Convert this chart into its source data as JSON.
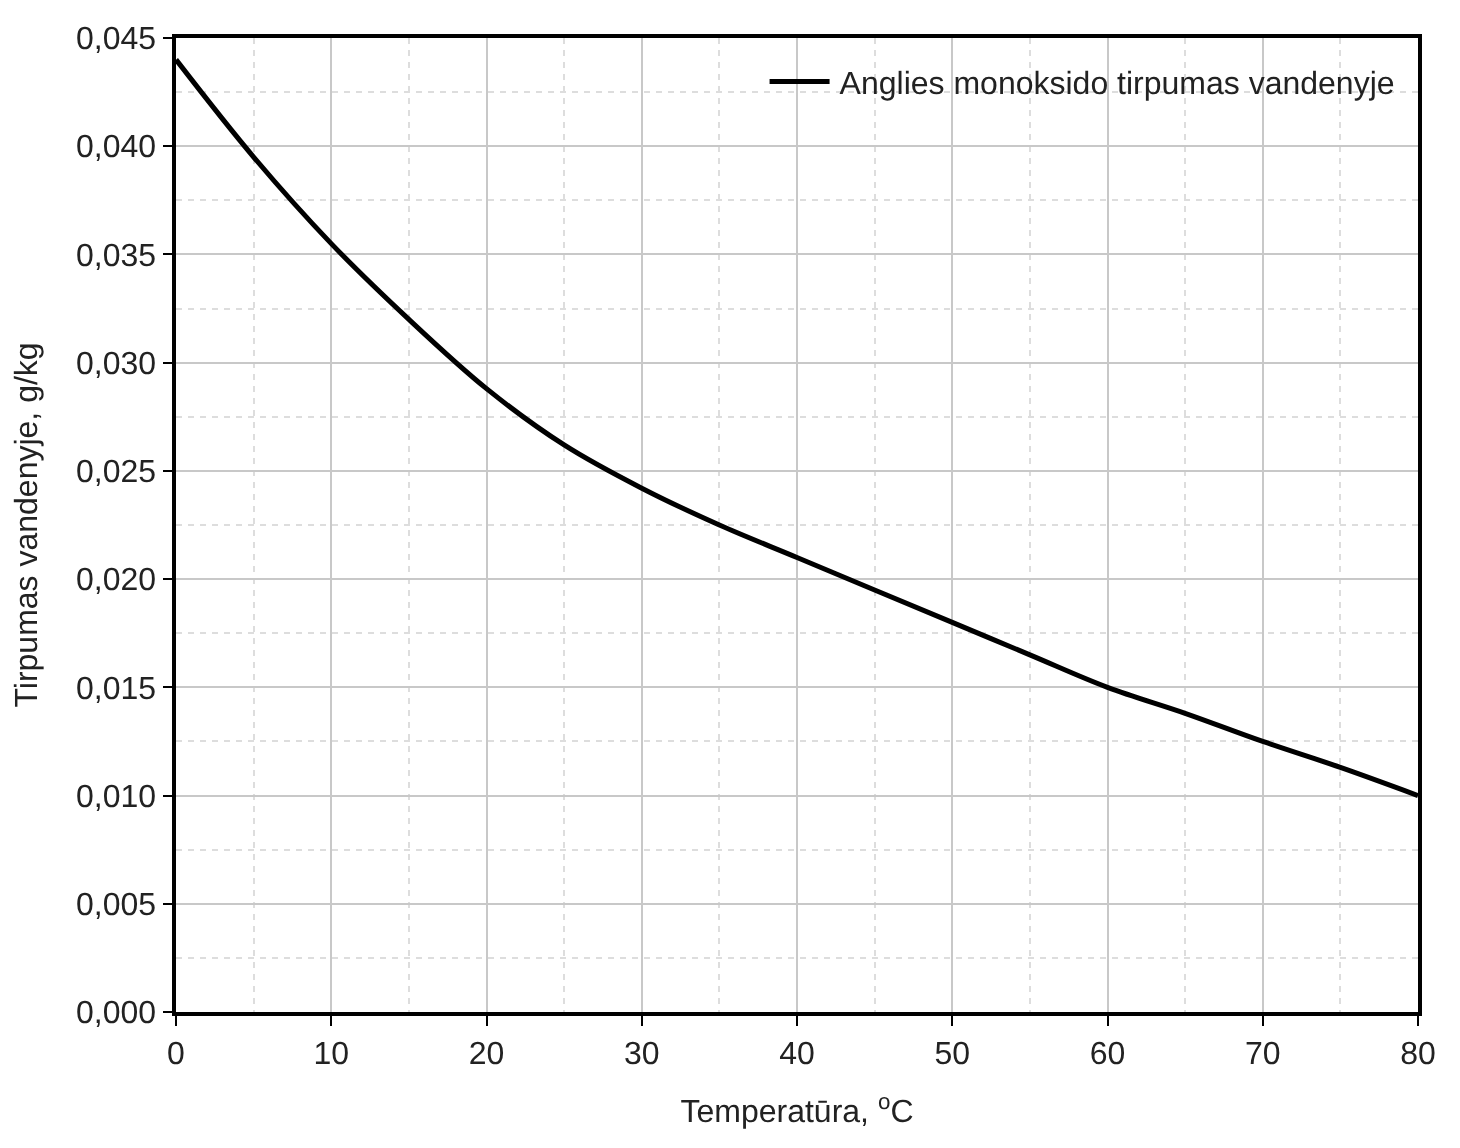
{
  "chart_data": {
    "type": "line",
    "xlabel": "Temperatūra, $^{o}$C",
    "ylabel": "Tirpumas vandenyje, g/kg",
    "x": [
      0,
      5,
      10,
      15,
      20,
      25,
      30,
      35,
      40,
      45,
      50,
      55,
      60,
      65,
      70,
      75,
      80
    ],
    "series": [
      {
        "name": "Anglies monoksido tirpumas vandenyje",
        "color": "#000000",
        "values": [
          0.044,
          0.0395,
          0.0355,
          0.032,
          0.0288,
          0.0262,
          0.0242,
          0.0225,
          0.021,
          0.0195,
          0.018,
          0.0165,
          0.015,
          0.0138,
          0.0125,
          0.0113,
          0.01
        ]
      }
    ],
    "xlim": [
      0,
      80
    ],
    "xticks": [
      0,
      10,
      20,
      30,
      40,
      50,
      60,
      70,
      80
    ],
    "ylim": [
      0,
      0.045
    ],
    "yticks": [
      {
        "value": 0,
        "label": "0,000"
      },
      {
        "value": 0.005,
        "label": "0,005"
      },
      {
        "value": 0.01,
        "label": "0,010"
      },
      {
        "value": 0.015,
        "label": "0,015"
      },
      {
        "value": 0.02,
        "label": "0,020"
      },
      {
        "value": 0.025,
        "label": "0,025"
      },
      {
        "value": 0.03,
        "label": "0,030"
      },
      {
        "value": 0.035,
        "label": "0,035"
      },
      {
        "value": 0.04,
        "label": "0,040"
      },
      {
        "value": 0.045,
        "label": "0,045"
      }
    ],
    "grid": true,
    "legend": "top right",
    "marker": "none",
    "line_style": "solid"
  }
}
